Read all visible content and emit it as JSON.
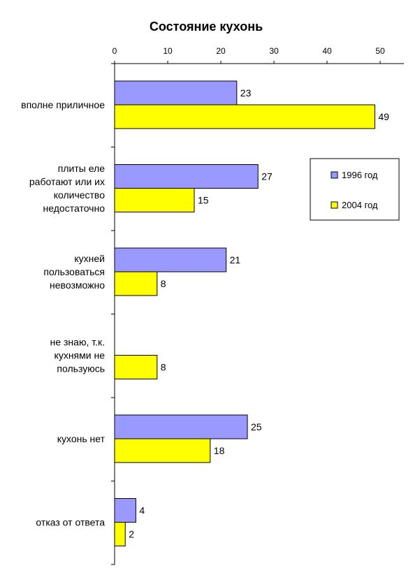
{
  "chart_data": {
    "type": "bar",
    "orientation": "horizontal",
    "title": "Состояние кухонь",
    "categories": [
      [
        "вполне приличное"
      ],
      [
        "плиты еле",
        "работают или их",
        "количество",
        "недостаточно"
      ],
      [
        "кухней",
        "пользоваться",
        "невозможно"
      ],
      [
        "не знаю, т.к.",
        "кухнями не",
        "пользуюсь"
      ],
      [
        "кухонь нет"
      ],
      [
        "отказ от ответа"
      ]
    ],
    "series": [
      {
        "name": "1996 год",
        "color": "#9999ff",
        "values": [
          23,
          27,
          21,
          null,
          25,
          4
        ]
      },
      {
        "name": "2004 год",
        "color": "#ffff00",
        "values": [
          49,
          15,
          8,
          8,
          18,
          2
        ]
      }
    ],
    "xlim": [
      0,
      55
    ],
    "ticks": [
      0,
      10,
      20,
      30,
      40,
      50
    ],
    "x_axis_position": "top",
    "grid": false,
    "legend_position": "right"
  }
}
